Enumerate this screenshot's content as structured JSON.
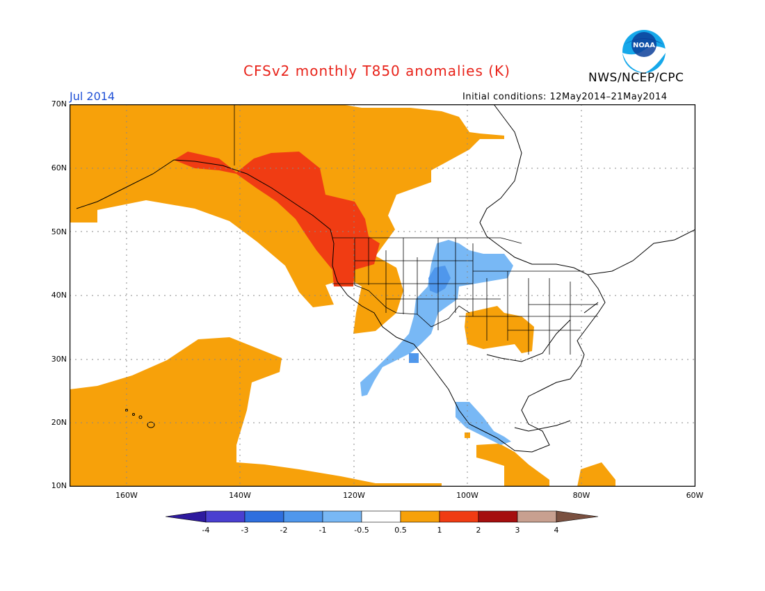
{
  "header": {
    "title": "CFSv2 monthly T850 anomalies (K)",
    "agency": "NWS/NCEP/CPC",
    "logo_text": "NOAA",
    "month": "Jul 2014",
    "initial_conditions": "Initial conditions: 12May2014–21May2014"
  },
  "map": {
    "region": "North America / NE Pacific",
    "projection": "lat-lon",
    "lat_range": [
      10,
      70
    ],
    "lon_range": [
      -170,
      -60
    ],
    "lat_labels": [
      "70N",
      "60N",
      "50N",
      "40N",
      "30N",
      "20N",
      "10N"
    ],
    "lon_labels": [
      "160W",
      "140W",
      "120W",
      "100W",
      "80W",
      "60W"
    ],
    "gridlines": "dotted",
    "anomaly_regions": [
      {
        "name": "warm-north-pacific-canada",
        "category": "0.5 to 1",
        "color": "#f7a10a"
      },
      {
        "name": "warm-core-pacific-northwest",
        "category": "1 to 2",
        "color": "#f03c13"
      },
      {
        "name": "warm-subtropical-pacific",
        "category": "0.5 to 1",
        "color": "#f7a10a"
      },
      {
        "name": "cool-plains-mexico",
        "category": "-1 to -0.5",
        "color": "#78b8f5"
      },
      {
        "name": "cool-core-plains",
        "category": "-2 to -1",
        "color": "#4f97ec"
      },
      {
        "name": "warm-south-central-us",
        "category": "0.5 to 1",
        "color": "#f7a10a"
      },
      {
        "name": "warm-central-america",
        "category": "0.5 to 1",
        "color": "#f7a10a"
      }
    ]
  },
  "colorbar": {
    "labels": [
      "-4",
      "-3",
      "-2",
      "-1",
      "-0.5",
      "0.5",
      "1",
      "2",
      "3",
      "4"
    ],
    "colors": [
      "#2e1a9e",
      "#4a3fd0",
      "#2f6fde",
      "#4f97ec",
      "#78b8f5",
      "#ffffff",
      "#f7a10a",
      "#f03c13",
      "#a50f0f",
      "#c8a090",
      "#7a5040"
    ]
  }
}
